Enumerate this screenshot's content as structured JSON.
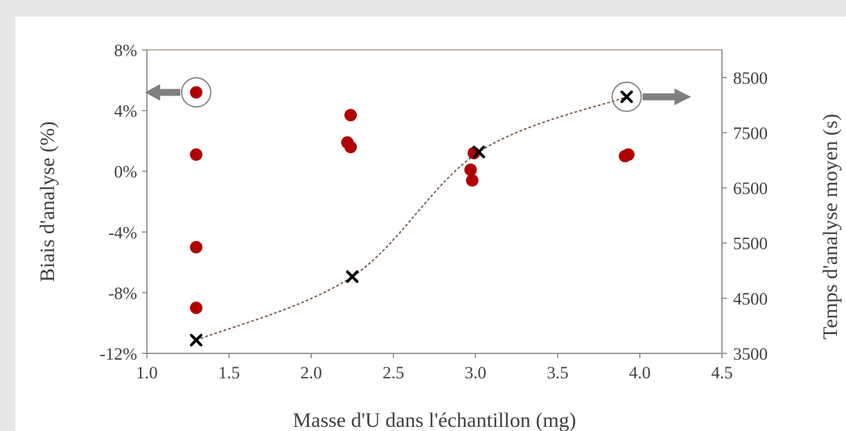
{
  "chart_data": {
    "type": "scatter",
    "xlabel": "Masse d'U dans l'échantillon (mg)",
    "ylabel": "Biais d'analyse (%)",
    "y2label": "Temps d'analyse moyen  (s)",
    "xlim": [
      1.0,
      4.5
    ],
    "ylim": [
      -12,
      8
    ],
    "y2lim": [
      3500,
      9000
    ],
    "x_ticks": [
      "1.0",
      "1.5",
      "2.0",
      "2.5",
      "3.0",
      "3.5",
      "4.0",
      "4.5"
    ],
    "y_ticks": [
      "-12%",
      "-8%",
      "-4%",
      "0%",
      "4%",
      "8%"
    ],
    "y2_ticks": [
      "3500",
      "4500",
      "5500",
      "6500",
      "7500",
      "8500"
    ],
    "grid": false,
    "series": [
      {
        "axis": "left",
        "marker": "circle",
        "color": "#b00000",
        "points": [
          {
            "x": 1.3,
            "y": 5.2
          },
          {
            "x": 1.3,
            "y": 1.1
          },
          {
            "x": 1.3,
            "y": -5.0
          },
          {
            "x": 1.3,
            "y": -9.0
          },
          {
            "x": 2.22,
            "y": 1.9
          },
          {
            "x": 2.24,
            "y": 1.6
          },
          {
            "x": 2.24,
            "y": 3.7
          },
          {
            "x": 2.97,
            "y": 0.1
          },
          {
            "x": 2.98,
            "y": -0.6
          },
          {
            "x": 2.99,
            "y": 1.2
          },
          {
            "x": 3.91,
            "y": 1.0
          },
          {
            "x": 3.93,
            "y": 1.1
          }
        ]
      },
      {
        "axis": "right",
        "marker": "x",
        "color": "#000000",
        "trend": "smooth-dashed",
        "trend_color": "#7a5c48",
        "points": [
          {
            "x": 1.3,
            "y": 3740
          },
          {
            "x": 2.25,
            "y": 4890
          },
          {
            "x": 3.02,
            "y": 7150
          },
          {
            "x": 3.92,
            "y": 8150
          }
        ]
      }
    ],
    "annotations": [
      {
        "type": "circle-arrow",
        "direction": "left",
        "target": {
          "x": 1.3,
          "y": 5.2,
          "axis": "left"
        }
      },
      {
        "type": "circle-arrow",
        "direction": "right",
        "target": {
          "x": 3.92,
          "y": 8150,
          "axis": "right"
        }
      }
    ]
  }
}
